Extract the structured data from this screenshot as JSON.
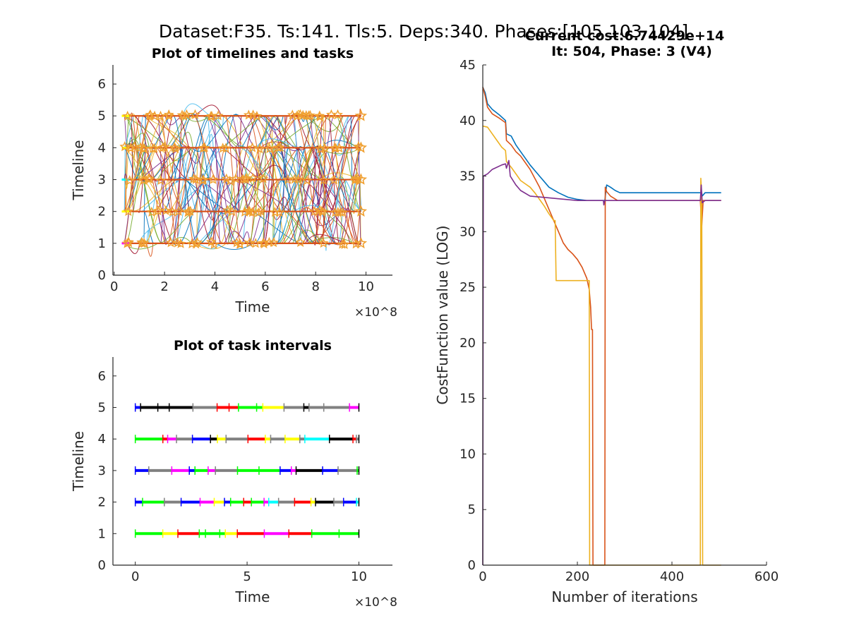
{
  "suptitle": "Dataset:F35. Ts:141. Tls:5. Deps:340. Phases:[105 103 104]",
  "overlay_title": "Current cost:6.74429e+14",
  "colors": {
    "matlab": [
      "#0072BD",
      "#D95319",
      "#EDB120",
      "#7E2F8E",
      "#77AC30",
      "#4DBEEE",
      "#A2142F"
    ],
    "intervals": [
      "#FF0000",
      "#000000",
      "#FFFF00",
      "#00FFFF",
      "#FF00FF",
      "#0000FF",
      "#00FF00",
      "#808080"
    ],
    "star": "#F0A030",
    "axis": "#262626"
  },
  "chart_data": [
    {
      "id": "timelines",
      "type": "line",
      "title": "Plot of timelines and tasks",
      "xlabel": "Time",
      "ylabel": "Timeline",
      "x_exponent": "×10^8",
      "xlim": [
        -0.05,
        11.05
      ],
      "ylim": [
        0,
        6.6
      ],
      "xticks": [
        0,
        2,
        4,
        6,
        8,
        10
      ],
      "yticks": [
        0,
        1,
        2,
        3,
        4,
        5,
        6
      ],
      "timelines": [
        1,
        2,
        3,
        4,
        5
      ],
      "time_range": [
        0.4,
        9.8
      ],
      "connection_count": 340,
      "grid": false
    },
    {
      "id": "intervals",
      "type": "line",
      "title": "Plot of task intervals",
      "xlabel": "Time",
      "ylabel": "Timeline",
      "x_exponent": "×10^8",
      "xlim": [
        -1,
        11.5
      ],
      "ylim": [
        0,
        6.6
      ],
      "xticks": [
        0,
        5,
        10
      ],
      "yticks": [
        0,
        1,
        2,
        3,
        4,
        5,
        6
      ],
      "timelines": [
        1,
        2,
        3,
        4,
        5
      ],
      "time_range": [
        0,
        10
      ],
      "grid": false
    },
    {
      "id": "cost",
      "type": "line",
      "title": "It: 504, Phase: 3 (V4)",
      "xlabel": "Number of iterations",
      "ylabel": "CostFunction value (LOG)",
      "xlim": [
        0,
        600
      ],
      "ylim": [
        0,
        45
      ],
      "xticks": [
        0,
        200,
        400,
        600
      ],
      "yticks": [
        0,
        5,
        10,
        15,
        20,
        25,
        30,
        35,
        40,
        45
      ],
      "grid": false,
      "series": [
        {
          "color": "#0072BD",
          "points": [
            [
              0,
              43
            ],
            [
              5,
              42.5
            ],
            [
              10,
              41.5
            ],
            [
              20,
              41
            ],
            [
              35,
              40.5
            ],
            [
              48,
              40
            ],
            [
              50,
              38.8
            ],
            [
              60,
              38.6
            ],
            [
              70,
              37.8
            ],
            [
              80,
              37.2
            ],
            [
              90,
              36.6
            ],
            [
              100,
              36
            ],
            [
              120,
              35
            ],
            [
              140,
              34
            ],
            [
              160,
              33.5
            ],
            [
              180,
              33.1
            ],
            [
              200,
              32.9
            ],
            [
              220,
              32.8
            ],
            [
              250,
              32.8
            ],
            [
              258,
              32.8
            ],
            [
              262,
              34.2
            ],
            [
              270,
              34
            ],
            [
              280,
              33.7
            ],
            [
              290,
              33.5
            ],
            [
              300,
              33.5
            ],
            [
              400,
              33.5
            ],
            [
              460,
              33.5
            ],
            [
              463,
              33.5
            ],
            [
              464,
              33.2
            ],
            [
              470,
              33.5
            ],
            [
              504,
              33.5
            ]
          ]
        },
        {
          "color": "#D95319",
          "points": [
            [
              0,
              43
            ],
            [
              5,
              42.2
            ],
            [
              10,
              41.2
            ],
            [
              20,
              40.6
            ],
            [
              35,
              40.2
            ],
            [
              48,
              39.8
            ],
            [
              50,
              38.2
            ],
            [
              60,
              37.8
            ],
            [
              70,
              37.2
            ],
            [
              80,
              36.8
            ],
            [
              90,
              36.2
            ],
            [
              100,
              35.6
            ],
            [
              110,
              34.8
            ],
            [
              120,
              34
            ],
            [
              130,
              33
            ],
            [
              140,
              32
            ],
            [
              150,
              31
            ],
            [
              160,
              30
            ],
            [
              170,
              29
            ],
            [
              180,
              28.4
            ],
            [
              190,
              28
            ],
            [
              200,
              27.5
            ],
            [
              210,
              26.8
            ],
            [
              220,
              25.8
            ],
            [
              225,
              24.8
            ],
            [
              228,
              23.2
            ],
            [
              230,
              21.2
            ],
            [
              232,
              21.2
            ],
            [
              233,
              0
            ],
            [
              258,
              0
            ],
            [
              259,
              34
            ],
            [
              262,
              33.6
            ],
            [
              270,
              33.2
            ],
            [
              285,
              32.8
            ],
            [
              300,
              32.8
            ],
            [
              460,
              32.8
            ],
            [
              463,
              30.5
            ],
            [
              466,
              32.8
            ],
            [
              504,
              32.8
            ]
          ]
        },
        {
          "color": "#EDB120",
          "points": [
            [
              0,
              39.5
            ],
            [
              10,
              39.4
            ],
            [
              20,
              38.8
            ],
            [
              30,
              38.2
            ],
            [
              40,
              37.6
            ],
            [
              48,
              37.3
            ],
            [
              50,
              36.3
            ],
            [
              60,
              35.8
            ],
            [
              70,
              35.2
            ],
            [
              80,
              34.6
            ],
            [
              90,
              34.3
            ],
            [
              100,
              34
            ],
            [
              110,
              33.5
            ],
            [
              120,
              32.9
            ],
            [
              130,
              32.3
            ],
            [
              140,
              31.6
            ],
            [
              150,
              31
            ],
            [
              153,
              31
            ],
            [
              155,
              25.6
            ],
            [
              220,
              25.6
            ],
            [
              225,
              25.6
            ],
            [
              226,
              0
            ],
            [
              460,
              0
            ],
            [
              461,
              34.8
            ],
            [
              463,
              33.1
            ],
            [
              465,
              0
            ],
            [
              504,
              0
            ]
          ]
        },
        {
          "color": "#7E2F8E",
          "points": [
            [
              0,
              0
            ],
            [
              1,
              35
            ],
            [
              10,
              35.2
            ],
            [
              20,
              35.6
            ],
            [
              30,
              35.8
            ],
            [
              40,
              36
            ],
            [
              48,
              36.1
            ],
            [
              50,
              35.7
            ],
            [
              55,
              36.4
            ],
            [
              58,
              35
            ],
            [
              70,
              34.2
            ],
            [
              80,
              33.7
            ],
            [
              100,
              33.2
            ],
            [
              150,
              33
            ],
            [
              200,
              32.8
            ],
            [
              250,
              32.8
            ],
            [
              255,
              32.8
            ],
            [
              256,
              32.4
            ],
            [
              258,
              32.8
            ],
            [
              300,
              32.8
            ],
            [
              460,
              32.8
            ],
            [
              462,
              34.2
            ],
            [
              464,
              32.6
            ],
            [
              470,
              32.8
            ],
            [
              504,
              32.8
            ]
          ]
        }
      ]
    }
  ]
}
